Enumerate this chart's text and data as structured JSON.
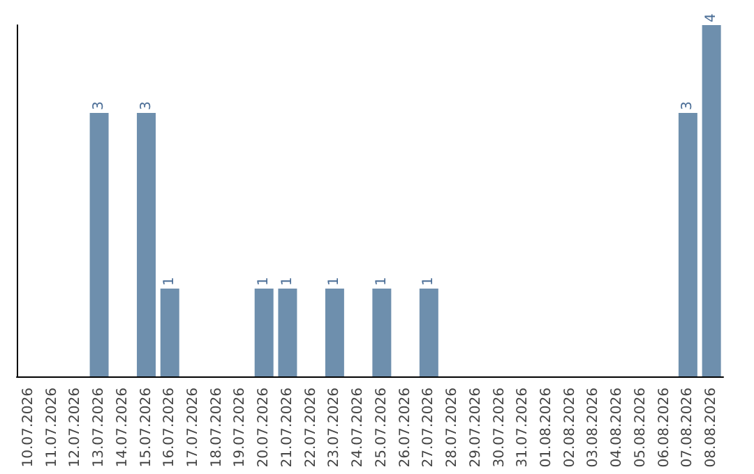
{
  "chart_data": {
    "type": "bar",
    "categories": [
      "10.07.2026",
      "11.07.2026",
      "12.07.2026",
      "13.07.2026",
      "14.07.2026",
      "15.07.2026",
      "16.07.2026",
      "17.07.2026",
      "18.07.2026",
      "19.07.2026",
      "20.07.2026",
      "21.07.2026",
      "22.07.2026",
      "23.07.2026",
      "24.07.2026",
      "25.07.2026",
      "26.07.2026",
      "27.07.2026",
      "28.07.2026",
      "29.07.2026",
      "30.07.2026",
      "31.07.2026",
      "01.08.2026",
      "02.08.2026",
      "03.08.2026",
      "04.08.2026",
      "05.08.2026",
      "06.08.2026",
      "07.08.2026",
      "08.08.2026"
    ],
    "values": [
      null,
      null,
      null,
      3,
      null,
      3,
      1,
      null,
      null,
      null,
      1,
      1,
      null,
      1,
      null,
      1,
      null,
      1,
      null,
      null,
      null,
      null,
      null,
      null,
      null,
      null,
      null,
      null,
      3,
      4
    ],
    "color": "#6e8fad",
    "data_labels": true,
    "tick_labels": "x"
  }
}
